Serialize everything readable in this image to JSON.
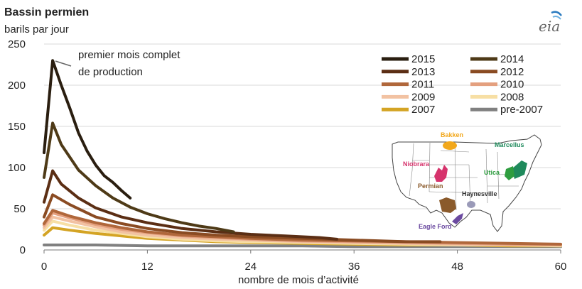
{
  "chart_data": {
    "type": "line",
    "title": "Bassin permien",
    "ylabel": "barils par jour",
    "xlabel": "nombre de mois d’activité",
    "xlim": [
      0,
      60
    ],
    "ylim": [
      0,
      250
    ],
    "x_ticks": [
      0,
      12,
      24,
      36,
      48,
      60
    ],
    "y_ticks": [
      0,
      50,
      100,
      150,
      200,
      250
    ],
    "grid": true,
    "legend_position": "top-right",
    "annotation": "premier mois complet\nde production",
    "series": [
      {
        "name": "2015",
        "color": "#2a1e10",
        "x": [
          0,
          1,
          2,
          3,
          4,
          5,
          6,
          7,
          8,
          9,
          10
        ],
        "values": [
          118,
          230,
          200,
          172,
          142,
          120,
          103,
          90,
          82,
          72,
          63
        ]
      },
      {
        "name": "2014",
        "color": "#4e3a17",
        "x": [
          0,
          1,
          2,
          4,
          6,
          8,
          10,
          12,
          14,
          16,
          18,
          20,
          22
        ],
        "values": [
          88,
          154,
          128,
          97,
          78,
          63,
          52,
          44,
          38,
          33,
          29,
          26,
          22
        ]
      },
      {
        "name": "2013",
        "color": "#5b2e14",
        "x": [
          0,
          1,
          2,
          4,
          6,
          9,
          12,
          16,
          20,
          24,
          28,
          32,
          34
        ],
        "values": [
          58,
          96,
          80,
          63,
          51,
          40,
          33,
          26,
          22,
          19,
          17,
          15,
          13
        ]
      },
      {
        "name": "2012",
        "color": "#8a4b22",
        "x": [
          0,
          1,
          3,
          6,
          9,
          12,
          16,
          20,
          24,
          30,
          36,
          42,
          46
        ],
        "values": [
          40,
          67,
          55,
          40,
          32,
          26,
          21,
          18,
          16,
          14,
          12,
          10,
          10
        ]
      },
      {
        "name": "2011",
        "color": "#b0673b",
        "x": [
          0,
          1,
          3,
          6,
          9,
          12,
          16,
          20,
          24,
          30,
          36,
          42,
          48,
          54,
          60
        ],
        "values": [
          32,
          48,
          41,
          33,
          27,
          22,
          18,
          16,
          14,
          12,
          11,
          10,
          9,
          8,
          7
        ]
      },
      {
        "name": "2010",
        "color": "#e4a07f",
        "x": [
          0,
          1,
          3,
          6,
          9,
          12,
          16,
          20,
          24,
          30,
          36,
          42,
          48,
          54,
          60
        ],
        "values": [
          30,
          45,
          39,
          31,
          25,
          21,
          17,
          15,
          13,
          11,
          10,
          9,
          8,
          7,
          6
        ]
      },
      {
        "name": "2009",
        "color": "#f2c2a2",
        "x": [
          0,
          1,
          3,
          6,
          9,
          12,
          16,
          20,
          24,
          30,
          36,
          42,
          48,
          54,
          60
        ],
        "values": [
          27,
          40,
          35,
          28,
          22,
          18,
          15,
          13,
          12,
          10,
          9,
          8,
          7,
          6,
          6
        ]
      },
      {
        "name": "2008",
        "color": "#f7dfa4",
        "x": [
          0,
          1,
          3,
          6,
          9,
          12,
          16,
          20,
          24,
          30,
          36,
          42,
          48,
          54,
          60
        ],
        "values": [
          24,
          35,
          30,
          24,
          20,
          16,
          13,
          11,
          10,
          9,
          8,
          7,
          6,
          6,
          5
        ]
      },
      {
        "name": "2007",
        "color": "#d4a424",
        "x": [
          0,
          1,
          3,
          6,
          9,
          12,
          16,
          20,
          24,
          30,
          36,
          42,
          48,
          54,
          60
        ],
        "values": [
          18,
          27,
          24,
          20,
          17,
          14,
          12,
          10,
          9,
          8,
          7,
          6,
          6,
          5,
          5
        ]
      },
      {
        "name": "pre-2007",
        "color": "#808080",
        "x": [
          0,
          1,
          6,
          12,
          18,
          24,
          30,
          36,
          42,
          48,
          54,
          60
        ],
        "values": [
          6,
          6,
          6,
          5,
          5,
          5,
          5,
          4,
          4,
          4,
          4,
          4
        ]
      }
    ]
  },
  "map": {
    "labels": {
      "bakken": "Bakken",
      "marcellus": "Marcellus",
      "niobrara": "Niobrara",
      "utica": "Utica",
      "permian": "Permian",
      "haynesville": "Haynesville",
      "eagle_ford": "Eagle Ford"
    },
    "colors": {
      "bakken": "#f2a81c",
      "marcellus": "#1f8a5c",
      "niobrara": "#d6336c",
      "utica": "#2e9d3f",
      "permian": "#8a5a2b",
      "haynesville": "#555555",
      "eagle_ford": "#6b4aa0"
    }
  },
  "logo": {
    "text": "eia"
  }
}
